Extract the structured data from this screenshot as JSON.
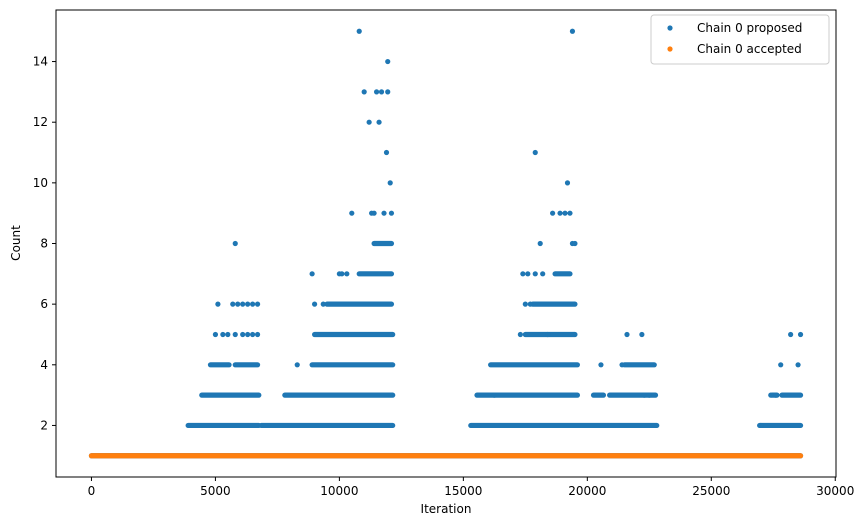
{
  "chart_data": {
    "type": "scatter",
    "title": "",
    "xlabel": "Iteration",
    "ylabel": "Count",
    "xlim": [
      -1430,
      30030
    ],
    "ylim": [
      0.3,
      15.7
    ],
    "x_ticks": [
      0,
      5000,
      10000,
      15000,
      20000,
      25000,
      30000
    ],
    "x_tick_labels": [
      "0",
      "5000",
      "10000",
      "15000",
      "20000",
      "25000",
      "30000"
    ],
    "y_ticks": [
      2,
      4,
      6,
      8,
      10,
      12,
      14
    ],
    "y_tick_labels": [
      "2",
      "4",
      "6",
      "8",
      "10",
      "12",
      "14"
    ],
    "grid": false,
    "legend_position": "top-right",
    "series": [
      {
        "name": "Chain 0 proposed",
        "color": "#1f77b4",
        "ranges": [
          {
            "y": 1,
            "x0": 0,
            "x1": 28600
          },
          {
            "y": 2,
            "x0": 3900,
            "x1": 6750
          },
          {
            "y": 2,
            "x0": 6850,
            "x1": 12150
          },
          {
            "y": 2,
            "x0": 15300,
            "x1": 22800
          },
          {
            "y": 2,
            "x0": 26950,
            "x1": 28600
          },
          {
            "y": 3,
            "x0": 4450,
            "x1": 6750
          },
          {
            "y": 3,
            "x0": 7800,
            "x1": 12150
          },
          {
            "y": 3,
            "x0": 15550,
            "x1": 19600
          },
          {
            "y": 3,
            "x0": 20250,
            "x1": 20650
          },
          {
            "y": 3,
            "x0": 20900,
            "x1": 22750
          },
          {
            "y": 3,
            "x0": 27450,
            "x1": 27650
          },
          {
            "y": 3,
            "x0": 27850,
            "x1": 28600
          },
          {
            "y": 4,
            "x0": 4800,
            "x1": 5550
          },
          {
            "y": 4,
            "x0": 5800,
            "x1": 6700
          },
          {
            "y": 4,
            "x0": 8900,
            "x1": 12150
          },
          {
            "y": 4,
            "x0": 16100,
            "x1": 19600
          },
          {
            "y": 4,
            "x0": 21500,
            "x1": 22700
          },
          {
            "y": 5,
            "x0": 9000,
            "x1": 12150
          },
          {
            "y": 5,
            "x0": 17500,
            "x1": 19500
          },
          {
            "y": 6,
            "x0": 9500,
            "x1": 12100
          },
          {
            "y": 6,
            "x0": 17800,
            "x1": 19500
          },
          {
            "y": 7,
            "x0": 10800,
            "x1": 12100
          },
          {
            "y": 7,
            "x0": 18700,
            "x1": 19300
          },
          {
            "y": 8,
            "x0": 11400,
            "x1": 12100
          }
        ],
        "points": [
          {
            "x": 5800,
            "y": 8
          },
          {
            "x": 5100,
            "y": 6
          },
          {
            "x": 5700,
            "y": 6
          },
          {
            "x": 5900,
            "y": 6
          },
          {
            "x": 6100,
            "y": 6
          },
          {
            "x": 6300,
            "y": 6
          },
          {
            "x": 6500,
            "y": 6
          },
          {
            "x": 6700,
            "y": 6
          },
          {
            "x": 5000,
            "y": 5
          },
          {
            "x": 5300,
            "y": 5
          },
          {
            "x": 5500,
            "y": 5
          },
          {
            "x": 5800,
            "y": 5
          },
          {
            "x": 6100,
            "y": 5
          },
          {
            "x": 6300,
            "y": 5
          },
          {
            "x": 6500,
            "y": 5
          },
          {
            "x": 6700,
            "y": 5
          },
          {
            "x": 8300,
            "y": 4
          },
          {
            "x": 8900,
            "y": 7
          },
          {
            "x": 9000,
            "y": 6
          },
          {
            "x": 9350,
            "y": 6
          },
          {
            "x": 10000,
            "y": 7
          },
          {
            "x": 10100,
            "y": 7
          },
          {
            "x": 10300,
            "y": 7
          },
          {
            "x": 10500,
            "y": 9
          },
          {
            "x": 10800,
            "y": 15
          },
          {
            "x": 11000,
            "y": 13
          },
          {
            "x": 11200,
            "y": 12
          },
          {
            "x": 11300,
            "y": 9
          },
          {
            "x": 11400,
            "y": 9
          },
          {
            "x": 11500,
            "y": 13
          },
          {
            "x": 11600,
            "y": 12
          },
          {
            "x": 11700,
            "y": 13
          },
          {
            "x": 11800,
            "y": 9
          },
          {
            "x": 11900,
            "y": 11
          },
          {
            "x": 11950,
            "y": 14
          },
          {
            "x": 11950,
            "y": 13
          },
          {
            "x": 12050,
            "y": 10
          },
          {
            "x": 12100,
            "y": 9
          },
          {
            "x": 16250,
            "y": 3
          },
          {
            "x": 17300,
            "y": 5
          },
          {
            "x": 17400,
            "y": 7
          },
          {
            "x": 17600,
            "y": 7
          },
          {
            "x": 17500,
            "y": 6
          },
          {
            "x": 17700,
            "y": 6
          },
          {
            "x": 17900,
            "y": 7
          },
          {
            "x": 17900,
            "y": 11
          },
          {
            "x": 18100,
            "y": 8
          },
          {
            "x": 18200,
            "y": 7
          },
          {
            "x": 18400,
            "y": 5
          },
          {
            "x": 18600,
            "y": 9
          },
          {
            "x": 18900,
            "y": 9
          },
          {
            "x": 19100,
            "y": 9
          },
          {
            "x": 19200,
            "y": 10
          },
          {
            "x": 19300,
            "y": 9
          },
          {
            "x": 19400,
            "y": 15
          },
          {
            "x": 19400,
            "y": 8
          },
          {
            "x": 19500,
            "y": 8
          },
          {
            "x": 20550,
            "y": 4
          },
          {
            "x": 21400,
            "y": 4
          },
          {
            "x": 21600,
            "y": 5
          },
          {
            "x": 22200,
            "y": 5
          },
          {
            "x": 22300,
            "y": 3
          },
          {
            "x": 22500,
            "y": 3
          },
          {
            "x": 27000,
            "y": 2
          },
          {
            "x": 27400,
            "y": 3
          },
          {
            "x": 27600,
            "y": 3
          },
          {
            "x": 27800,
            "y": 4
          },
          {
            "x": 28200,
            "y": 5
          },
          {
            "x": 28500,
            "y": 4
          },
          {
            "x": 28600,
            "y": 5
          }
        ]
      },
      {
        "name": "Chain 0 accepted",
        "color": "#ff7f0e",
        "ranges": [
          {
            "y": 1,
            "x0": 0,
            "x1": 28600
          }
        ],
        "points": []
      }
    ]
  }
}
